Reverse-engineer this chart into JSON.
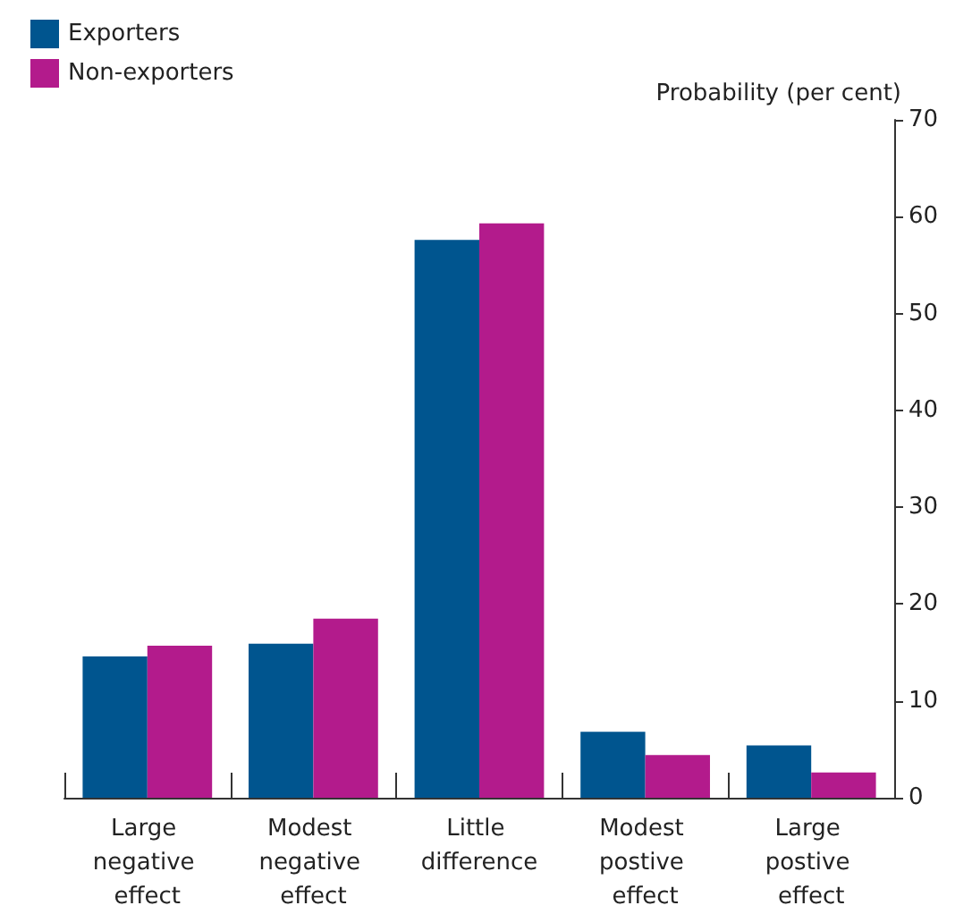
{
  "chart_data": {
    "type": "bar",
    "ylabel": "Probability (per cent)",
    "categories": [
      "Large negative effect",
      "Modest negative effect",
      "Little difference",
      "Modest postive effect",
      "Large postive effect"
    ],
    "series": [
      {
        "name": "Exporters",
        "color": "#00558f",
        "values": [
          14.6,
          15.9,
          57.6,
          6.8,
          5.4
        ]
      },
      {
        "name": "Non-exporters",
        "color": "#b31b8c",
        "values": [
          15.7,
          18.5,
          59.3,
          4.4,
          2.6
        ]
      }
    ],
    "ylim": [
      0,
      70
    ],
    "yticks": [
      0,
      10,
      20,
      30,
      40,
      50,
      60,
      70
    ],
    "grid": false,
    "legend": "top left"
  }
}
